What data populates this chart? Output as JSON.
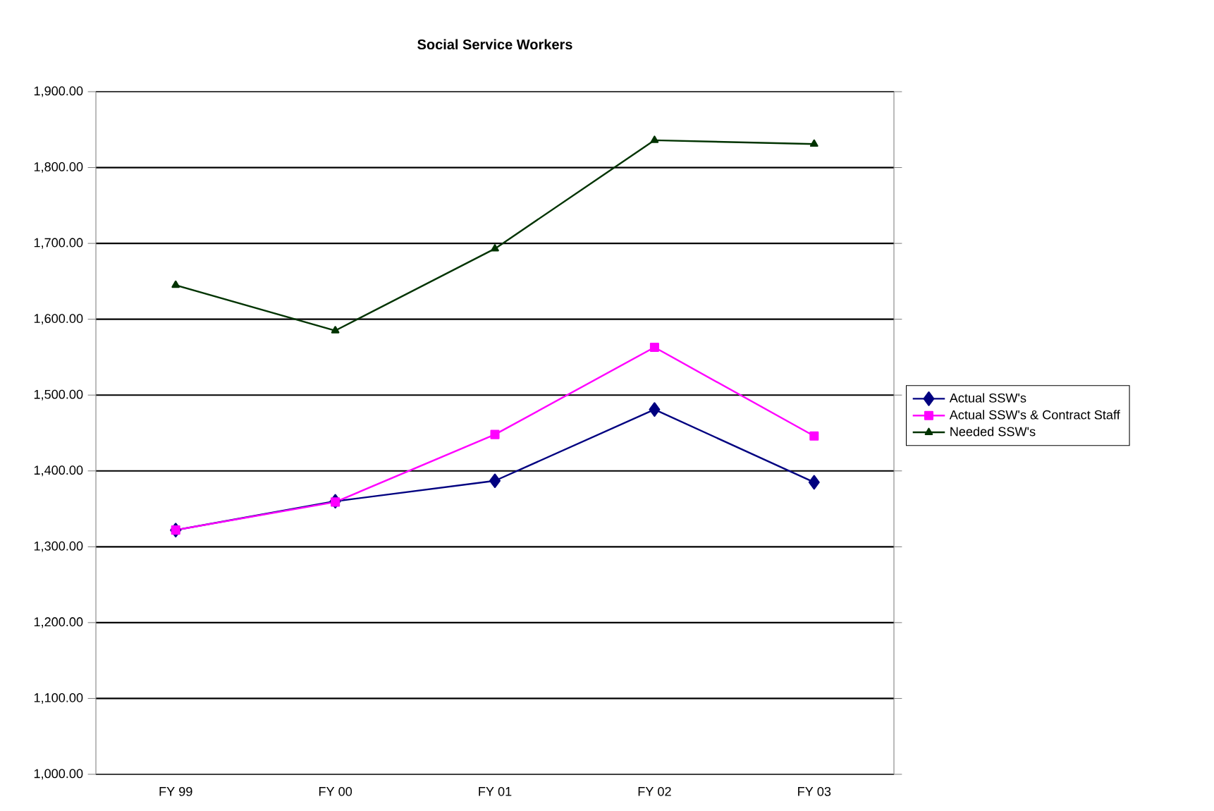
{
  "chart_data": {
    "type": "line",
    "title": "Social Service Workers",
    "categories": [
      "FY 99",
      "FY 00",
      "FY 01",
      "FY 02",
      "FY 03"
    ],
    "series": [
      {
        "name": "Actual SSW's",
        "color": "#000080",
        "marker": "diamond",
        "values": [
          1322,
          1360,
          1387,
          1481,
          1385
        ]
      },
      {
        "name": "Actual SSW's & Contract Staff",
        "color": "#ff00ff",
        "marker": "square",
        "values": [
          1322,
          1359,
          1448,
          1563,
          1446
        ]
      },
      {
        "name": "Needed SSW's",
        "color": "#003300",
        "marker": "triangle",
        "values": [
          1645,
          1585,
          1693,
          1836,
          1831
        ]
      }
    ],
    "ylim": [
      1000,
      1900
    ],
    "yticks": [
      {
        "value": 1000,
        "label": "1,000.00"
      },
      {
        "value": 1100,
        "label": "1,100.00"
      },
      {
        "value": 1200,
        "label": "1,200.00"
      },
      {
        "value": 1300,
        "label": "1,300.00"
      },
      {
        "value": 1400,
        "label": "1,400.00"
      },
      {
        "value": 1500,
        "label": "1,500.00"
      },
      {
        "value": 1600,
        "label": "1,600.00"
      },
      {
        "value": 1700,
        "label": "1,700.00"
      },
      {
        "value": 1800,
        "label": "1,800.00"
      },
      {
        "value": 1900,
        "label": "1,900.00"
      }
    ],
    "grid": "y",
    "legend": "right",
    "line_style": "solid"
  }
}
